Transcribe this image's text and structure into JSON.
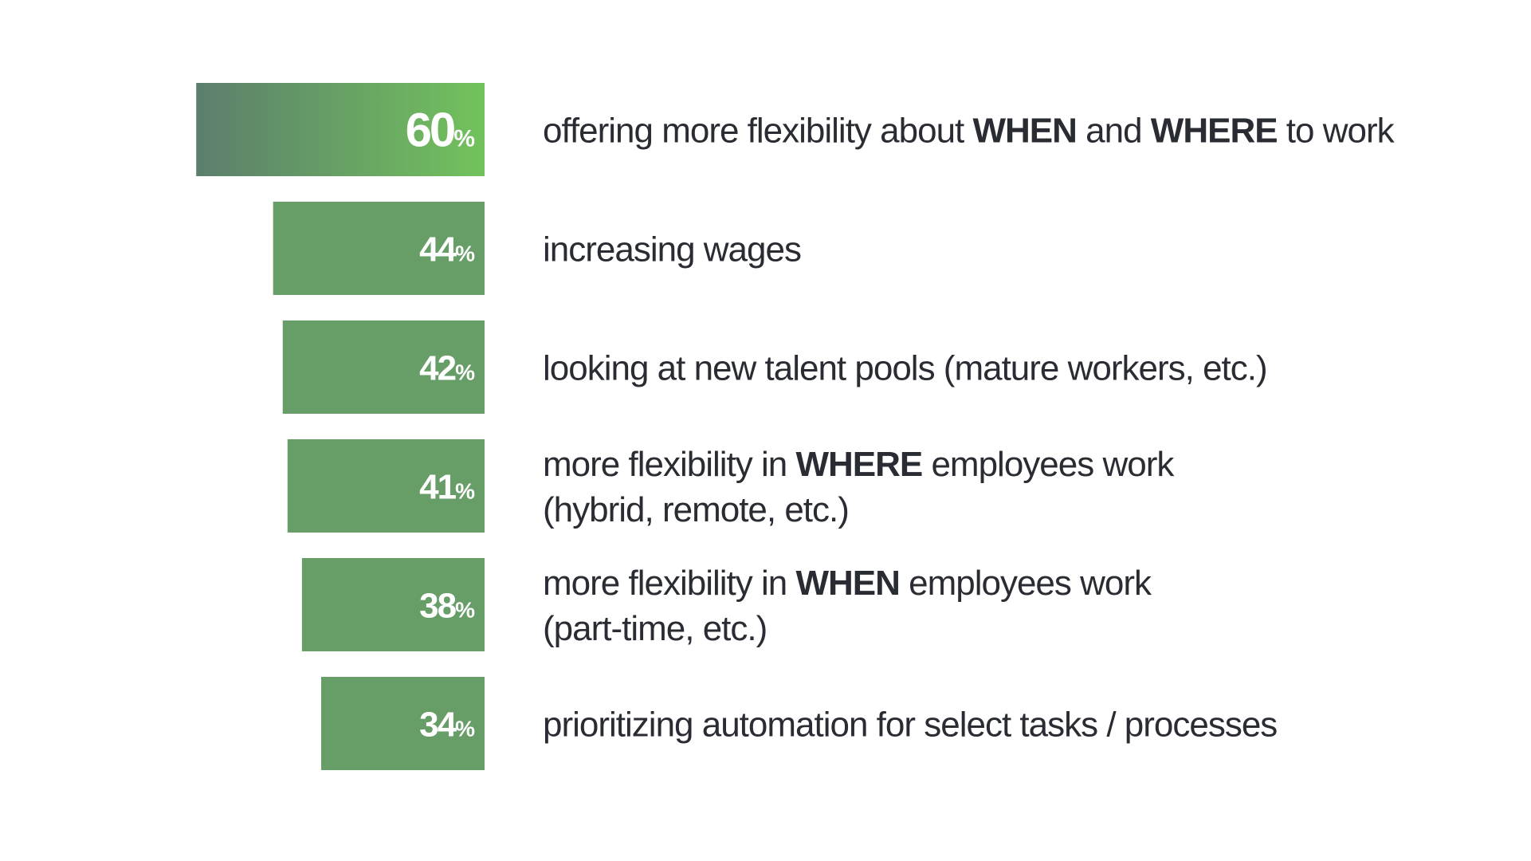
{
  "colors": {
    "bar": "#679d66",
    "bar_top_start": "#5c7e6d",
    "bar_top_end": "#72c25c",
    "text": "#2a2c33",
    "value_text": "#ffffff",
    "background": "#ffffff"
  },
  "chart_data": {
    "type": "bar",
    "orientation": "horizontal",
    "value_unit": "%",
    "title": "",
    "xlabel": "",
    "ylabel": "",
    "xlim": [
      0,
      60
    ],
    "grid": false,
    "categories": [
      [
        {
          "text": "offering more flexibility about "
        },
        {
          "text": "WHEN",
          "bold": true
        },
        {
          "text": " and "
        },
        {
          "text": "WHERE",
          "bold": true
        },
        {
          "text": " to work"
        }
      ],
      [
        {
          "text": "increasing wages"
        }
      ],
      [
        {
          "text": "looking at new talent pools (mature workers, etc.)"
        }
      ],
      [
        {
          "text": "more flexibility in "
        },
        {
          "text": "WHERE",
          "bold": true
        },
        {
          "text": " employees work"
        },
        {
          "text": "(hybrid, remote, etc.)",
          "newline": true
        }
      ],
      [
        {
          "text": "more flexibility in "
        },
        {
          "text": "WHEN",
          "bold": true
        },
        {
          "text": " employees work"
        },
        {
          "text": "(part-time, etc.)",
          "newline": true
        }
      ],
      [
        {
          "text": "prioritizing automation for select tasks / processes"
        }
      ]
    ],
    "values": [
      60,
      44,
      42,
      41,
      38,
      34
    ],
    "data_labels": [
      "60",
      "44",
      "42",
      "41",
      "38",
      "34"
    ]
  }
}
